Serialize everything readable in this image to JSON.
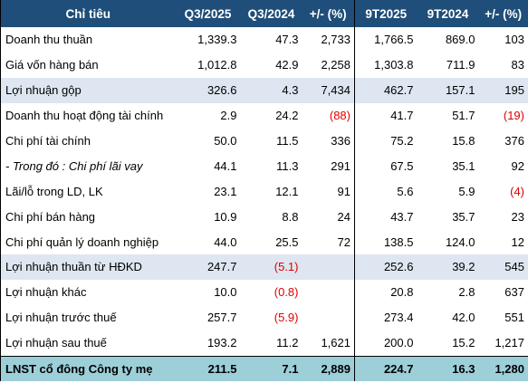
{
  "header": {
    "col0": "Chỉ tiêu",
    "col1": "Q3/2025",
    "col2": "Q3/2024",
    "col3": "+/- (%)",
    "col4": "9T2025",
    "col5": "9T2024",
    "col6": "+/- (%)"
  },
  "rows": [
    {
      "label": "Doanh thu thuần",
      "q3_2025": "1,339.3",
      "q3_2024": "47.3",
      "q_change": "2,733",
      "t9_2025": "1,766.5",
      "t9_2024": "869.0",
      "t_change": "103"
    },
    {
      "label": "Giá vốn hàng bán",
      "q3_2025": "1,012.8",
      "q3_2024": "42.9",
      "q_change": "2,258",
      "t9_2025": "1,303.8",
      "t9_2024": "711.9",
      "t_change": "83"
    },
    {
      "label": "Lợi nhuận gộp",
      "q3_2025": "326.6",
      "q3_2024": "4.3",
      "q_change": "7,434",
      "t9_2025": "462.7",
      "t9_2024": "157.1",
      "t_change": "195"
    },
    {
      "label": "Doanh thu hoạt động tài chính",
      "q3_2025": "2.9",
      "q3_2024": "24.2",
      "q_change": "(88)",
      "t9_2025": "41.7",
      "t9_2024": "51.7",
      "t_change": "(19)"
    },
    {
      "label": "Chi phí tài chính",
      "q3_2025": "50.0",
      "q3_2024": "11.5",
      "q_change": "336",
      "t9_2025": "75.2",
      "t9_2024": "15.8",
      "t_change": "376"
    },
    {
      "label": "- Trong đó : Chi phí lãi vay",
      "q3_2025": "44.1",
      "q3_2024": "11.3",
      "q_change": "291",
      "t9_2025": "67.5",
      "t9_2024": "35.1",
      "t_change": "92"
    },
    {
      "label": "Lãi/lỗ trong LD, LK",
      "q3_2025": "23.1",
      "q3_2024": "12.1",
      "q_change": "91",
      "t9_2025": "5.6",
      "t9_2024": "5.9",
      "t_change": "(4)"
    },
    {
      "label": "Chi phí bán hàng",
      "q3_2025": "10.9",
      "q3_2024": "8.8",
      "q_change": "24",
      "t9_2025": "43.7",
      "t9_2024": "35.7",
      "t_change": "23"
    },
    {
      "label": "Chi phí quản lý doanh nghiệp",
      "q3_2025": "44.0",
      "q3_2024": "25.5",
      "q_change": "72",
      "t9_2025": "138.5",
      "t9_2024": "124.0",
      "t_change": "12"
    },
    {
      "label": "Lợi nhuận thuần từ HĐKD",
      "q3_2025": "247.7",
      "q3_2024": "(5.1)",
      "q_change": "",
      "t9_2025": "252.6",
      "t9_2024": "39.2",
      "t_change": "545"
    },
    {
      "label": "Lợi nhuận khác",
      "q3_2025": "10.0",
      "q3_2024": "(0.8)",
      "q_change": "",
      "t9_2025": "20.8",
      "t9_2024": "2.8",
      "t_change": "637"
    },
    {
      "label": "Lợi nhuận trước thuế",
      "q3_2025": "257.7",
      "q3_2024": "(5.9)",
      "q_change": "",
      "t9_2025": "273.4",
      "t9_2024": "42.0",
      "t_change": "551"
    },
    {
      "label": "Lợi nhuận sau thuế",
      "q3_2025": "193.2",
      "q3_2024": "11.2",
      "q_change": "1,621",
      "t9_2025": "200.0",
      "t9_2024": "15.2",
      "t_change": "1,217"
    },
    {
      "label": "LNST cổ đông Công ty mẹ",
      "q3_2025": "211.5",
      "q3_2024": "7.1",
      "q_change": "2,889",
      "t9_2025": "224.7",
      "t9_2024": "16.3",
      "t_change": "1,280"
    }
  ],
  "colors": {
    "header_bg": "#1e4e79",
    "shade_bg": "#dde6f1",
    "total_bg": "#9dcfd9",
    "negative": "#e00000"
  }
}
